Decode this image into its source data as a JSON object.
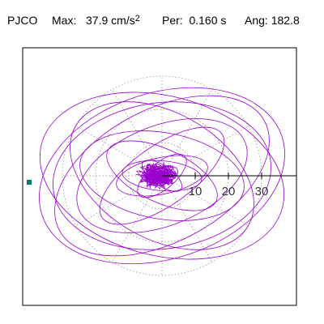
{
  "header": {
    "station": "PJCO",
    "max_label": "Max:",
    "max_value": "37.9",
    "max_unit": "cm/s",
    "max_unit_exp": "2",
    "per_label": "Per:",
    "per_value": "0.160 s",
    "ang_label": "Ang:",
    "ang_value": "182.8"
  },
  "chart_data": {
    "type": "polar-particle-motion",
    "center": [
      0,
      0
    ],
    "units": "cm/s2",
    "rings": [
      10,
      20,
      30
    ],
    "ring_labels": [
      "10",
      "20",
      "30"
    ],
    "spokes_deg": [
      0,
      30,
      60,
      90,
      120,
      150,
      180,
      210,
      240,
      270,
      300,
      330
    ],
    "direction_axis_deg": 0,
    "peak_angle_deg": 182.8,
    "peak_magnitude": 37.9,
    "trace_color": "#9900cc",
    "marker_color": "#00806a",
    "frame_color": "#000000",
    "grid_color": "#888888",
    "ellipses": [
      {
        "rx": 38.0,
        "ry": 25.0,
        "rot": 18
      },
      {
        "rx": 37.5,
        "ry": 24.0,
        "rot": -15
      },
      {
        "rx": 33.0,
        "ry": 22.0,
        "rot": 8
      },
      {
        "rx": 35.0,
        "ry": 20.0,
        "rot": 28
      },
      {
        "rx": 30.0,
        "ry": 19.0,
        "rot": -30
      },
      {
        "rx": 27.0,
        "ry": 15.0,
        "rot": 22
      },
      {
        "rx": 25.0,
        "ry": 13.0,
        "rot": -10
      },
      {
        "rx": 22.0,
        "ry": 9.0,
        "rot": 35
      },
      {
        "rx": 18.0,
        "ry": 8.0,
        "rot": -25
      },
      {
        "rx": 14.0,
        "ry": 5.5,
        "rot": 12
      },
      {
        "rx": 12.0,
        "ry": 4.5,
        "rot": -5
      },
      {
        "rx": 9.0,
        "ry": 4.0,
        "rot": 40
      },
      {
        "rx": 7.0,
        "ry": 3.0,
        "rot": -35
      },
      {
        "rx": 5.0,
        "ry": 2.5,
        "rot": 20
      },
      {
        "rx": 3.5,
        "ry": 2.0,
        "rot": -15
      },
      {
        "rx": 2.5,
        "ry": 1.5,
        "rot": 60
      }
    ]
  }
}
